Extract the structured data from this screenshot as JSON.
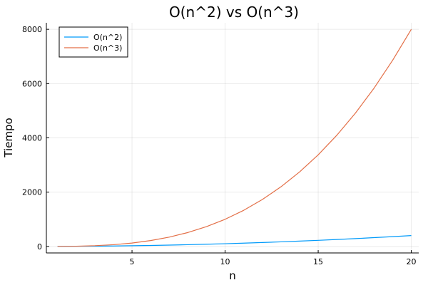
{
  "chart_data": {
    "type": "line",
    "title": "O(n^2) vs O(n^3)",
    "xlabel": "n",
    "ylabel": "Tiempo",
    "xlim": [
      0.4,
      20.4
    ],
    "ylim": [
      -240,
      8240
    ],
    "x_ticks": [
      5,
      10,
      15,
      20
    ],
    "y_ticks": [
      0,
      2000,
      4000,
      6000,
      8000
    ],
    "grid": true,
    "legend_position": "top-left",
    "x": [
      1,
      2,
      3,
      4,
      5,
      6,
      7,
      8,
      9,
      10,
      11,
      12,
      13,
      14,
      15,
      16,
      17,
      18,
      19,
      20
    ],
    "series": [
      {
        "name": "O(n^2)",
        "color": "#009AFA",
        "values": [
          1,
          4,
          9,
          16,
          25,
          36,
          49,
          64,
          81,
          100,
          121,
          144,
          169,
          196,
          225,
          256,
          289,
          324,
          361,
          400
        ]
      },
      {
        "name": "O(n^3)",
        "color": "#E36F47",
        "values": [
          1,
          8,
          27,
          64,
          125,
          216,
          343,
          512,
          729,
          1000,
          1331,
          1728,
          2197,
          2744,
          3375,
          4096,
          4913,
          5832,
          6859,
          8000
        ]
      }
    ]
  }
}
